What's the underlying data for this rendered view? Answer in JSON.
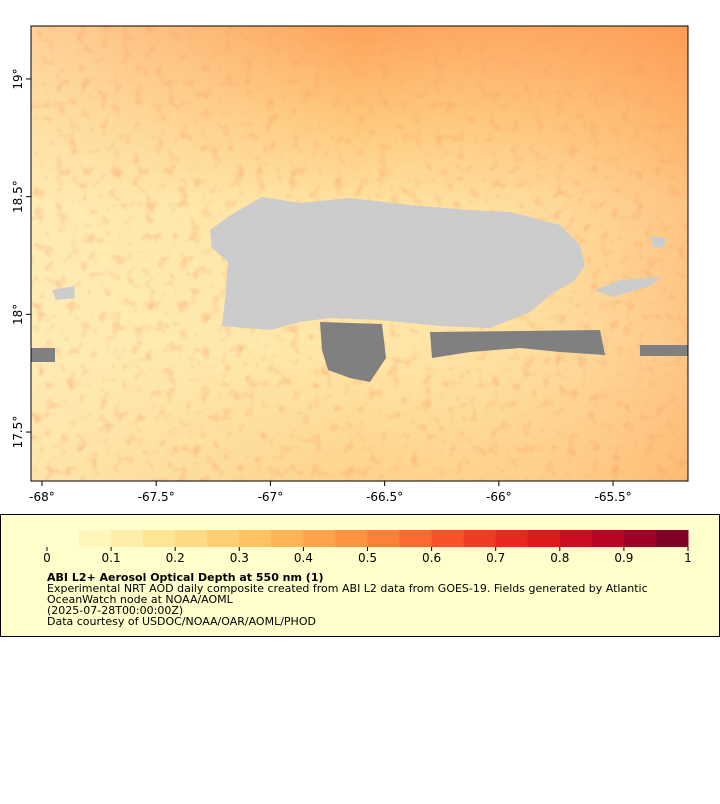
{
  "map": {
    "xlim": [
      -68.048,
      -65.172
    ],
    "ylim": [
      17.292,
      19.225
    ],
    "xticks": [
      {
        "value": -68,
        "label": "-68°"
      },
      {
        "value": -67.5,
        "label": "-67.5°"
      },
      {
        "value": -67,
        "label": "-67°"
      },
      {
        "value": -66.5,
        "label": "-66.5°"
      },
      {
        "value": -66,
        "label": "-66°"
      },
      {
        "value": -65.5,
        "label": "-65.5°"
      }
    ],
    "yticks": [
      {
        "value": 17.5,
        "label": "17.5°"
      },
      {
        "value": 18,
        "label": "18°"
      },
      {
        "value": 18.5,
        "label": "18.5°"
      },
      {
        "value": 19,
        "label": "19°"
      }
    ]
  },
  "colorbar": {
    "lim": [
      0,
      1
    ],
    "ticks": [
      0,
      0.1,
      0.2,
      0.3,
      0.4,
      0.5,
      0.6,
      0.7,
      0.8,
      0.9,
      1
    ],
    "colors": [
      "#ffffcc",
      "#fff6bb",
      "#ffeea8",
      "#fee596",
      "#fedb84",
      "#fed072",
      "#fec262",
      "#feb456",
      "#fea34b",
      "#fd9241",
      "#fd7f38",
      "#fc6a31",
      "#f9522a",
      "#f13c24",
      "#e7291f",
      "#db1a1e",
      "#cb0e21",
      "#b90426",
      "#a10026",
      "#800026"
    ]
  },
  "caption": {
    "title": "ABI L2+ Aerosol Optical Depth at 550 nm (1)",
    "lines": [
      "Experimental NRT AOD daily composite created from ABI L2 data from GOES-19. Fields generated by Atlantic",
      "OceanWatch node at NOAA/AOML",
      "(2025-07-28T00:00:00Z)",
      "Data courtesy of USDOC/NOAA/OAR/AOML/PHOD"
    ]
  }
}
